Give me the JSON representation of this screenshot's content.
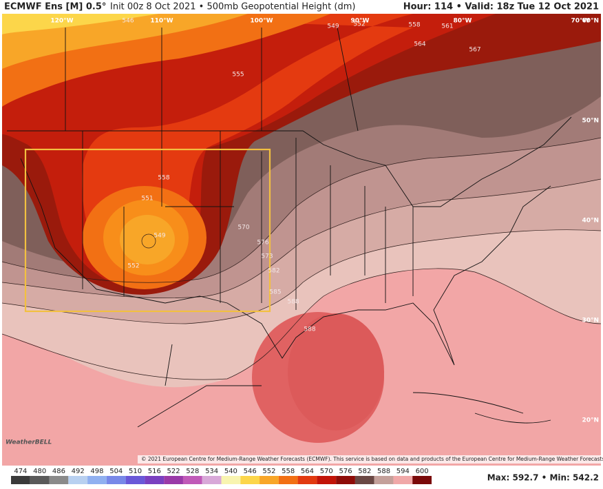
{
  "header": {
    "model": "ECMWF Ens [M] 0.5°",
    "subtitle": "Init 00z 8 Oct 2021 • 500mb Geopotential Height (dm)",
    "valid": "Hour: 114 • Valid: 18z Tue 12 Oct 2021"
  },
  "map": {
    "longitudes": [
      "120°W",
      "110°W",
      "100°W",
      "90°W",
      "80°W",
      "70°W"
    ],
    "latitudes": [
      "60°N",
      "50°N",
      "40°N",
      "30°N",
      "20°N"
    ],
    "contour_labels": [
      "546",
      "549",
      "552",
      "558",
      "561",
      "564",
      "567",
      "555",
      "558",
      "551",
      "549",
      "552",
      "570",
      "576",
      "573",
      "582",
      "585",
      "588",
      "588"
    ],
    "logo": "WeatherBELL",
    "copyright": "© 2021 European Centre for Medium-Range Weather Forecasts (ECMWF). This service is based on data and products of the European Centre for Medium-Range Weather Forecasts (ECMWF)."
  },
  "colorbar": {
    "ticks": [
      474,
      480,
      486,
      492,
      498,
      504,
      510,
      516,
      522,
      528,
      534,
      540,
      546,
      552,
      558,
      564,
      570,
      576,
      582,
      588,
      594,
      600
    ],
    "colors": [
      "#3a3a3a",
      "#5a5a5a",
      "#8a8a8a",
      "#b8d0f0",
      "#90b0f0",
      "#7888e8",
      "#6a58d8",
      "#7a40c0",
      "#9a3aa8",
      "#c05ab8",
      "#d8a8d8",
      "#f8f4b0",
      "#fcd64a",
      "#f8a628",
      "#f27014",
      "#e23a10",
      "#c21408",
      "#8e0c08",
      "#6a4844",
      "#c4a09a",
      "#f0a8a8",
      "#7a0a0a"
    ]
  },
  "footer": {
    "stats": "Max: 592.7 • Min: 542.2"
  }
}
